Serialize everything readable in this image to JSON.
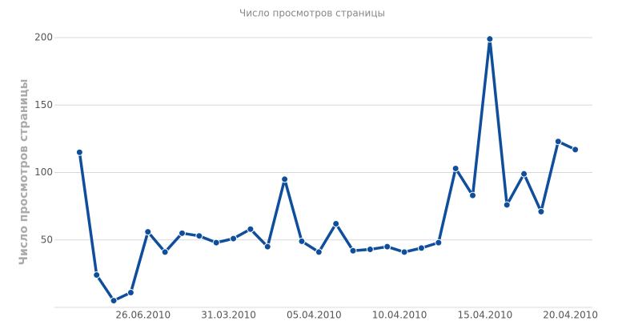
{
  "chart_data": {
    "type": "line",
    "title": "Число просмотров страницы",
    "y_label": "Число просмотров страницы",
    "categories": [
      null,
      null,
      null,
      null,
      "26.06.2010",
      null,
      null,
      null,
      null,
      "31.03.2010",
      null,
      null,
      null,
      null,
      "05.04.2010",
      null,
      null,
      null,
      null,
      "10.04.2010",
      null,
      null,
      null,
      null,
      "15.04.2010",
      null,
      null,
      null,
      null,
      "20.04.2010"
    ],
    "series": [
      {
        "name": "Число просмотров страницы",
        "color": "#0f4e9c",
        "values": [
          115,
          24,
          5,
          11,
          56,
          41,
          55,
          53,
          48,
          51,
          58,
          45,
          95,
          49,
          41,
          62,
          42,
          43,
          45,
          41,
          44,
          48,
          103,
          83,
          199,
          76,
          99,
          71,
          123,
          117
        ]
      }
    ],
    "ylim": [
      0,
      200
    ],
    "yticks": [
      50,
      100,
      150,
      200
    ],
    "grid": true
  }
}
